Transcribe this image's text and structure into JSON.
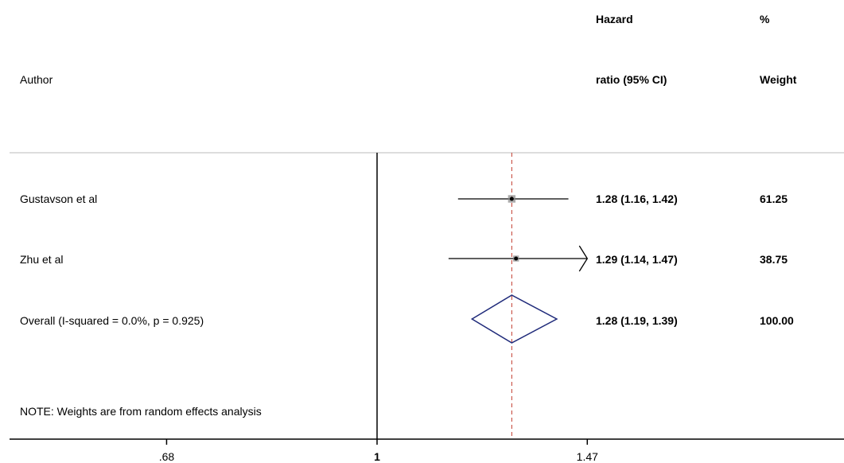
{
  "header": {
    "author": "Author",
    "hr_line1": "Hazard",
    "hr_line2": "ratio (95% CI)",
    "weight_line1": "%",
    "weight_line2": "Weight"
  },
  "note": "NOTE: Weights are from random effects analysis",
  "colors": {
    "study": "#000000",
    "overall_diamond": "#1f2a7a",
    "overall_line": "#c0392b",
    "axis": "#000000"
  },
  "chart_data": {
    "type": "forest",
    "xscale": "log",
    "xlim": [
      0.5,
      2.1
    ],
    "xticks": [
      {
        "value": 0.68,
        "label": ".68"
      },
      {
        "value": 1,
        "label": "1"
      },
      {
        "value": 1.47,
        "label": "1.47"
      }
    ],
    "null_line": 1,
    "studies": [
      {
        "label": "Gustavson et al",
        "hr": 1.28,
        "lo": 1.16,
        "hi": 1.42,
        "ci_text": "1.28 (1.16, 1.42)",
        "weight": "61.25",
        "clipped_hi": false
      },
      {
        "label": "Zhu et al",
        "hr": 1.29,
        "lo": 1.14,
        "hi": 1.47,
        "ci_text": "1.29 (1.14, 1.47)",
        "weight": "38.75",
        "clipped_hi": true
      }
    ],
    "overall": {
      "label": "Overall  (I-squared = 0.0%, p = 0.925)",
      "hr": 1.28,
      "lo": 1.19,
      "hi": 1.39,
      "ci_text": "1.28 (1.19, 1.39)",
      "weight": "100.00"
    }
  }
}
